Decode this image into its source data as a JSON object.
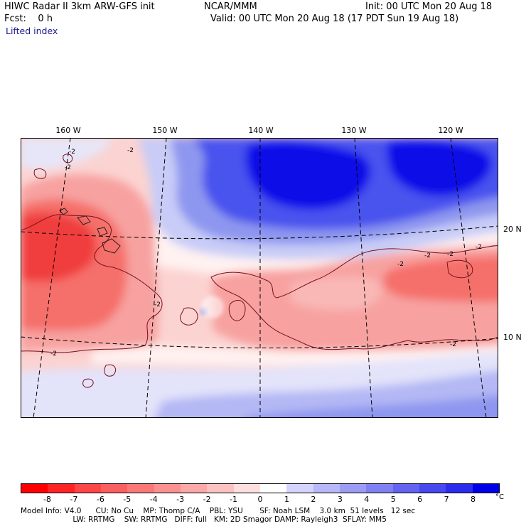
{
  "header": {
    "model": "HIWC Radar II 3km ARW-GFS init",
    "org": "NCAR/MMM",
    "init": "Init: 00 UTC Mon 20 Aug 18",
    "fcst": "Fcst:    0 h",
    "valid": "Valid: 00 UTC Mon 20 Aug 18 (17 PDT Sun 19 Aug 18)",
    "field": "Lifted index"
  },
  "map": {
    "lon_labels": [
      "160 W",
      "150 W",
      "140 W",
      "130 W",
      "120 W"
    ],
    "lat_labels": [
      "20 N",
      "10 N"
    ],
    "contour_label": "-2",
    "colors": {
      "warm_strong": "#f03c3c",
      "warm_mid": "#f5706a",
      "warm_light": "#f7a2a0",
      "warm_faint": "#fbd3d1",
      "neutral": "#fff0ee",
      "cool_light": "#d2d6f6",
      "cool_mid": "#8e97ef",
      "cool_strong": "#4a52ee",
      "cool_deep": "#0b10e8"
    }
  },
  "colorbar": {
    "labels": [
      "-8",
      "-7",
      "-6",
      "-5",
      "-4",
      "-3",
      "-2",
      "-1",
      "0",
      "1",
      "2",
      "3",
      "4",
      "5",
      "6",
      "7",
      "8"
    ],
    "unit": "°C",
    "colors": [
      "#ff0000",
      "#ff2323",
      "#ff4646",
      "#fc5f5f",
      "#fb7878",
      "#fa9090",
      "#fba8a8",
      "#fcc2c2",
      "#fde0de",
      "#ffffff",
      "#d4d4fc",
      "#b8b8f8",
      "#9c9cf4",
      "#8080f2",
      "#6464f0",
      "#4848ef",
      "#2c2cee",
      "#0000e8"
    ]
  },
  "footer": {
    "line1": "Model Info: V4.0      CU: No Cu    MP: Thomp C/A    PBL: YSU       SF: Noah LSM    3.0 km  51 levels   12 sec",
    "line2": "                      LW: RRTMG    SW: RRTMG   DIFF: full   KM: 2D Smagor DAMP: Rayleigh3  SFLAY: MM5"
  }
}
